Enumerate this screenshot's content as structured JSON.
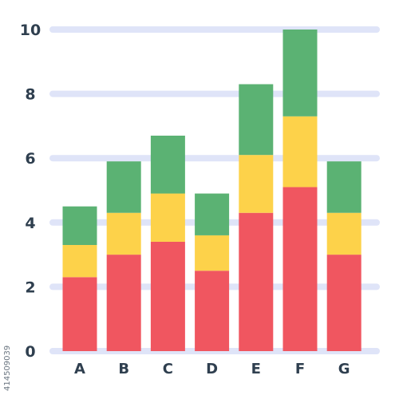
{
  "chart_data": {
    "type": "bar",
    "stacked": true,
    "categories": [
      "A",
      "B",
      "C",
      "D",
      "E",
      "F",
      "G"
    ],
    "series": [
      {
        "color": "#f05660",
        "values": [
          2.3,
          3.0,
          3.4,
          2.5,
          4.3,
          5.1,
          3.0
        ]
      },
      {
        "color": "#fdd24a",
        "values": [
          1.0,
          1.3,
          1.5,
          1.1,
          1.8,
          2.2,
          1.3
        ]
      },
      {
        "color": "#5bb273",
        "values": [
          1.2,
          1.6,
          1.8,
          1.3,
          2.2,
          2.7,
          1.6
        ]
      }
    ],
    "yticks": [
      0,
      2,
      4,
      6,
      8,
      10
    ],
    "ylim": [
      0,
      10
    ],
    "grid": true,
    "grid_color": "#dfe4f8",
    "tick_color": "#2f3f4f",
    "title": "",
    "xlabel": "",
    "ylabel": ""
  },
  "watermark_id": "414509039"
}
